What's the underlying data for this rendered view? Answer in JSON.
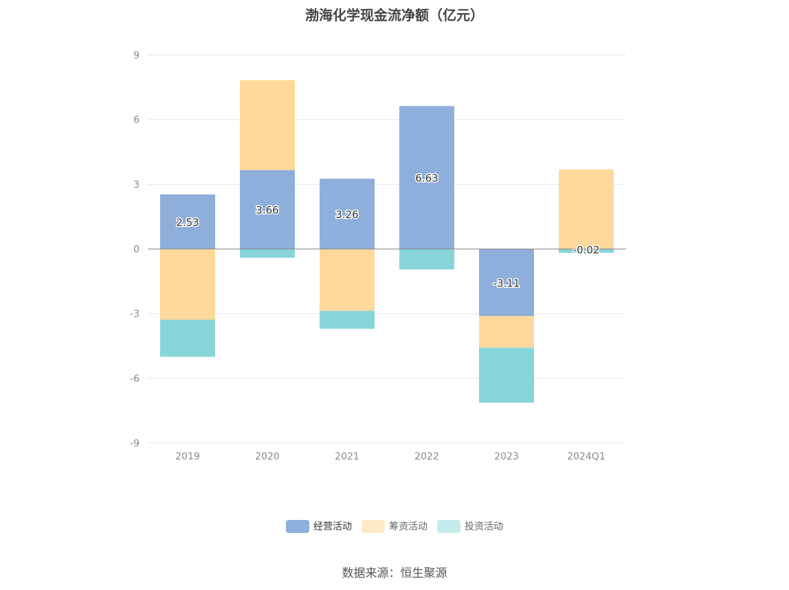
{
  "chart_data": {
    "type": "bar",
    "stacked": true,
    "title": "渤海化学现金流净额（亿元）",
    "categories": [
      "2019",
      "2020",
      "2021",
      "2022",
      "2023",
      "2024Q1"
    ],
    "series": [
      {
        "name": "经营活动",
        "color": "#8eaedb",
        "values": [
          2.53,
          3.66,
          3.26,
          6.63,
          -3.11,
          -0.02
        ],
        "labels": [
          "2.53",
          "3.66",
          "3.26",
          "6.63",
          "-3.11",
          "-0.02"
        ]
      },
      {
        "name": "筹资活动",
        "color": "#ffd99b",
        "legend_color": "#ffe8c6",
        "values": [
          -3.28,
          4.17,
          -2.87,
          0,
          -1.47,
          3.69
        ]
      },
      {
        "name": "投资活动",
        "color": "#87d5d9",
        "legend_color": "#c3ebed",
        "values": [
          -1.72,
          -0.41,
          -0.83,
          -0.95,
          -2.55,
          -0.16
        ]
      }
    ],
    "ylim": [
      -9,
      9
    ],
    "yticks": [
      "9",
      "6",
      "3",
      "0",
      "-3",
      "-6",
      "-9"
    ],
    "ytick_values": [
      9,
      6,
      3,
      0,
      -3,
      -6,
      -9
    ],
    "grid": true,
    "legend_position": "bottom",
    "source": "数据来源：恒生聚源"
  }
}
